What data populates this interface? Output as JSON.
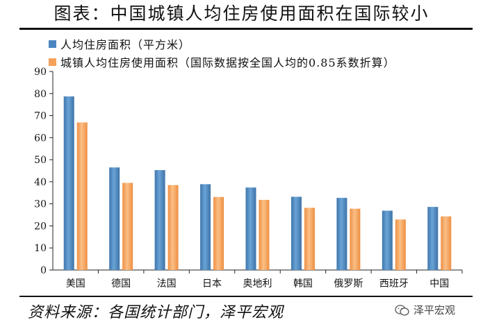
{
  "title": "图表：中国城镇人均住房使用面积在国际较小",
  "source": "资料来源：各国统计部门，泽平宏观",
  "watermark": "泽平宏观",
  "colors": {
    "series1": "#4a87c0",
    "series2": "#f5a15a"
  },
  "chart_data": {
    "type": "bar",
    "categories": [
      "美国",
      "德国",
      "法国",
      "日本",
      "奥地利",
      "韩国",
      "俄罗斯",
      "西班牙",
      "中国"
    ],
    "series": [
      {
        "name": "人均住房面积（平方米）",
        "values": [
          78.7,
          46.5,
          45.3,
          38.9,
          37.4,
          33.2,
          32.7,
          26.9,
          28.6
        ]
      },
      {
        "name": "城镇人均住房使用面积（国际数据按全国人均的0.85系数折算）",
        "values": [
          66.9,
          39.5,
          38.5,
          33.1,
          31.8,
          28.2,
          27.8,
          22.9,
          24.3
        ]
      }
    ],
    "ylim": [
      0,
      90
    ],
    "yticks": [
      0,
      10,
      20,
      30,
      40,
      50,
      60,
      70,
      80,
      90
    ],
    "legend": "top-left",
    "grid": false
  }
}
